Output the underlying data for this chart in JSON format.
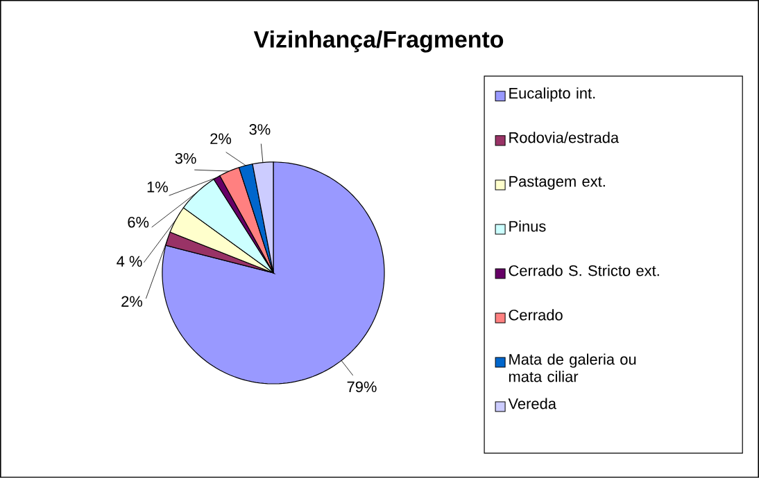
{
  "chart_data": {
    "type": "pie",
    "title": "Vizinhança/Fragmento",
    "categories": [
      "Eucalipto int.",
      "Rodovia/estrada",
      "Pastagem ext.",
      "Pinus",
      "Cerrado S. Stricto ext.",
      "Cerrado",
      "Mata de galeria ou mata ciliar",
      "Vereda"
    ],
    "values": [
      79,
      2,
      4,
      6,
      1,
      3,
      2,
      3
    ],
    "colors": [
      "#9999ff",
      "#993366",
      "#ffffcc",
      "#ccffff",
      "#660066",
      "#ff8080",
      "#0066cc",
      "#ccccff"
    ],
    "value_labels": [
      "79%",
      "2%",
      "4 %",
      "6%",
      "1%",
      "3%",
      "2%",
      "3%"
    ],
    "legend": "right"
  }
}
